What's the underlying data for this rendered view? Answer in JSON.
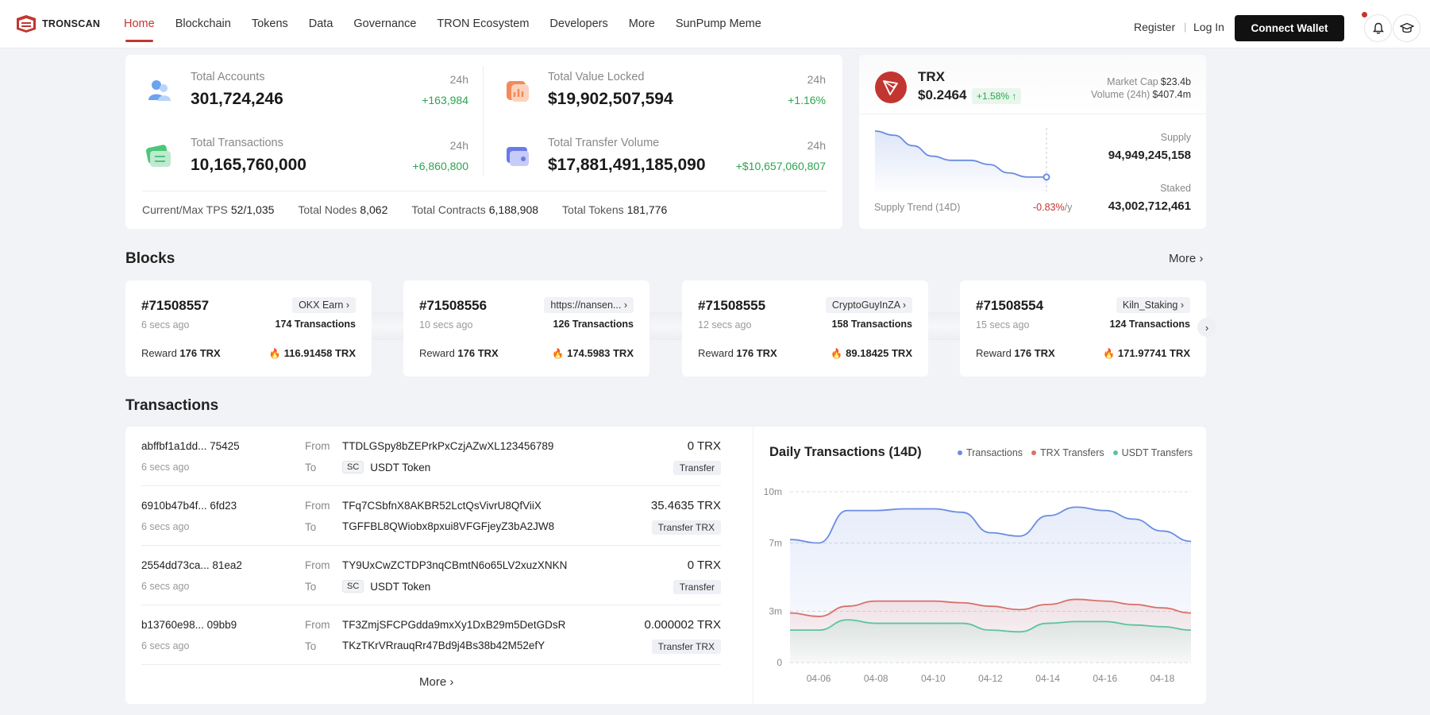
{
  "header": {
    "logo_text": "TRONSCAN",
    "nav": [
      "Home",
      "Blockchain",
      "Tokens",
      "Data",
      "Governance",
      "TRON Ecosystem",
      "Developers",
      "More",
      "SunPump Meme"
    ],
    "register": "Register",
    "separator": "|",
    "login": "Log In",
    "connect_wallet": "Connect Wallet"
  },
  "stats": {
    "total_accounts": {
      "label": "Total Accounts",
      "value": "301,724,246",
      "period": "24h",
      "change": "+163,984"
    },
    "total_value_locked": {
      "label": "Total Value Locked",
      "value": "$19,902,507,594",
      "period": "24h",
      "change": "+1.16%"
    },
    "total_transactions": {
      "label": "Total Transactions",
      "value": "10,165,760,000",
      "period": "24h",
      "change": "+6,860,800"
    },
    "total_transfer_volume": {
      "label": "Total Transfer Volume",
      "value": "$17,881,491,185,090",
      "period": "24h",
      "change": "+$10,657,060,807"
    },
    "metrics": {
      "tps_label": "Current/Max TPS",
      "tps_value": "52/1,035",
      "nodes_label": "Total Nodes",
      "nodes_value": "8,062",
      "contracts_label": "Total Contracts",
      "contracts_value": "6,188,908",
      "tokens_label": "Total Tokens",
      "tokens_value": "181,776"
    }
  },
  "trx": {
    "name": "TRX",
    "price": "$0.2464",
    "change": "+1.58% ↑",
    "market_cap_label": "Market Cap",
    "market_cap": "$23.4b",
    "volume_label": "Volume (24h)",
    "volume": "$407.4m",
    "trend_label": "Supply Trend (14D)",
    "trend_value": "-0.83%",
    "trend_unit": "/y",
    "supply_label": "Supply",
    "supply": "94,949,245,158",
    "staked_label": "Staked",
    "staked": "43,002,712,461"
  },
  "blocks": {
    "title": "Blocks",
    "more": "More ›",
    "items": [
      {
        "number": "#71508557",
        "producer": "OKX Earn ›",
        "time": "6 secs ago",
        "txs": "174 Transactions",
        "reward_label": "Reward",
        "reward": "176 TRX",
        "burn": "116.91458 TRX"
      },
      {
        "number": "#71508556",
        "producer": "https://nansen... ›",
        "time": "10 secs ago",
        "txs": "126 Transactions",
        "reward_label": "Reward",
        "reward": "176 TRX",
        "burn": "174.5983 TRX"
      },
      {
        "number": "#71508555",
        "producer": "CryptoGuyInZA ›",
        "time": "12 secs ago",
        "txs": "158 Transactions",
        "reward_label": "Reward",
        "reward": "176 TRX",
        "burn": "89.18425 TRX"
      },
      {
        "number": "#71508554",
        "producer": "Kiln_Staking ›",
        "time": "15 secs ago",
        "txs": "124 Transactions",
        "reward_label": "Reward",
        "reward": "176 TRX",
        "burn": "171.97741 TRX"
      }
    ]
  },
  "transactions": {
    "title": "Transactions",
    "from_label": "From",
    "to_label": "To",
    "more": "More ›",
    "items": [
      {
        "hash": "abffbf1a1dd... 75425",
        "time": "6 secs ago",
        "from": "TTDLGSpy8bZEPrkPxCzjAZwXL123456789",
        "to_badge": "SC",
        "to": "USDT Token",
        "amount": "0 TRX",
        "type": "Transfer"
      },
      {
        "hash": "6910b47b4f... 6fd23",
        "time": "6 secs ago",
        "from": "TFq7CSbfnX8AKBR52LctQsVivrU8QfViiX",
        "to_badge": "",
        "to": "TGFFBL8QWiobx8pxui8VFGFjeyZ3bA2JW8",
        "amount": "35.4635 TRX",
        "type": "Transfer TRX"
      },
      {
        "hash": "2554dd73ca... 81ea2",
        "time": "6 secs ago",
        "from": "TY9UxCwZCTDP3nqCBmtN6o65LV2xuzXNKN",
        "to_badge": "SC",
        "to": "USDT Token",
        "amount": "0 TRX",
        "type": "Transfer"
      },
      {
        "hash": "b13760e98... 09bb9",
        "time": "6 secs ago",
        "from": "TF3ZmjSFCPGdda9mxXy1DxB29m5DetGDsR",
        "to_badge": "",
        "to": "TKzTKrVRrauqRr47Bd9j4Bs38b42M52efY",
        "amount": "0.000002 TRX",
        "type": "Transfer TRX"
      }
    ]
  },
  "colors": {
    "accent": "#c23631",
    "positive": "#2da450",
    "series_transactions": "#6a8de0",
    "series_trx": "#d9706a",
    "series_usdt": "#5cc49a"
  },
  "chart_data": {
    "type": "line",
    "title": "Daily Transactions (14D)",
    "categories": [
      "04-05",
      "04-06",
      "04-07",
      "04-08",
      "04-09",
      "04-10",
      "04-11",
      "04-12",
      "04-13",
      "04-14",
      "04-15",
      "04-16",
      "04-17",
      "04-18",
      "04-19"
    ],
    "tick_labels": [
      "04-06",
      "04-08",
      "04-10",
      "04-12",
      "04-14",
      "04-16",
      "04-18"
    ],
    "y_ticks": [
      {
        "value": 0,
        "label": "0"
      },
      {
        "value": 3,
        "label": "3m"
      },
      {
        "value": 7,
        "label": "7m"
      },
      {
        "value": 10,
        "label": "10m"
      }
    ],
    "ylim": [
      0,
      10
    ],
    "legend_position": "top-right",
    "series": [
      {
        "name": "Transactions",
        "values": [
          7.2,
          7.0,
          8.9,
          8.9,
          9.0,
          9.0,
          8.8,
          7.6,
          7.4,
          8.6,
          9.1,
          8.9,
          8.4,
          7.7,
          7.1
        ]
      },
      {
        "name": "TRX Transfers",
        "values": [
          2.9,
          2.7,
          3.3,
          3.6,
          3.6,
          3.6,
          3.5,
          3.3,
          3.1,
          3.4,
          3.7,
          3.6,
          3.4,
          3.2,
          2.9
        ]
      },
      {
        "name": "USDT Transfers",
        "values": [
          1.9,
          1.9,
          2.5,
          2.3,
          2.3,
          2.3,
          2.3,
          1.9,
          1.8,
          2.3,
          2.4,
          2.4,
          2.2,
          2.1,
          1.9
        ]
      }
    ]
  },
  "supply_chart": {
    "type": "line",
    "values": [
      100,
      98,
      93,
      88,
      86,
      86,
      84,
      80,
      78,
      78
    ]
  }
}
